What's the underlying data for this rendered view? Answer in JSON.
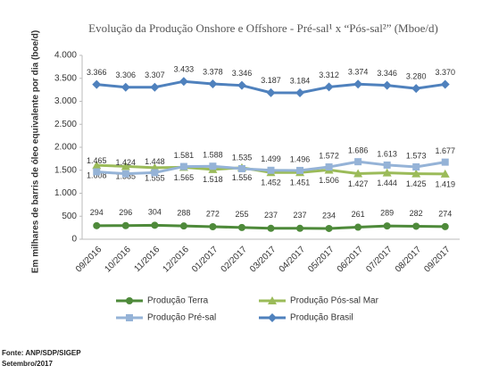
{
  "chart_data": {
    "type": "line",
    "title": "Evolução da Produção Onshore e Offshore - Pré-sal¹ x “Pós-sal²” (Mboe/d)",
    "ylabel": "Em milhares de barris de óleo equivalente por dia (boe/d)",
    "categories": [
      "09/2016",
      "10/2016",
      "11/2016",
      "12/2016",
      "01/2017",
      "02/2017",
      "03/2017",
      "04/2017",
      "05/2017",
      "06/2017",
      "07/2017",
      "08/2017",
      "09/2017"
    ],
    "series": [
      {
        "name": "Produção Terra",
        "color": "#4e8a3a",
        "marker": "circle",
        "values": [
          294,
          296,
          304,
          288,
          272,
          255,
          237,
          237,
          234,
          261,
          289,
          282,
          274
        ]
      },
      {
        "name": "Produção Pós-sal Mar",
        "color": "#9bbb59",
        "marker": "triangle",
        "values": [
          1608,
          1585,
          1555,
          1565,
          1518,
          1556,
          1452,
          1451,
          1506,
          1427,
          1444,
          1425,
          1419
        ],
        "value_labels": [
          "1.608",
          "1.585",
          "1.555",
          "1.565",
          "1.518",
          "1.556",
          "1.452",
          "1.451",
          "1.506",
          "1.427",
          "1.444",
          "1.425",
          "1.419"
        ]
      },
      {
        "name": "Produção Pré-sal",
        "color": "#95b3d7",
        "marker": "square",
        "values": [
          1465,
          1424,
          1448,
          1581,
          1588,
          1535,
          1499,
          1496,
          1572,
          1686,
          1613,
          1573,
          1677
        ],
        "value_labels": [
          "1.465",
          "1.424",
          "1.448",
          "1.581",
          "1.588",
          "1.535",
          "1.499",
          "1.496",
          "1.572",
          "1.686",
          "1.613",
          "1.573",
          "1.677"
        ]
      },
      {
        "name": "Produção Brasil",
        "color": "#4f81bd",
        "marker": "diamond",
        "values": [
          3366,
          3306,
          3307,
          3433,
          3378,
          3346,
          3187,
          3184,
          3312,
          3374,
          3346,
          3280,
          3370
        ],
        "value_labels": [
          "3.366",
          "3.306",
          "3.307",
          "3.433",
          "3.378",
          "3.346",
          "3.187",
          "3.184",
          "3.312",
          "3.374",
          "3.346",
          "3.280",
          "3.370"
        ]
      }
    ],
    "ylim": [
      0,
      4000
    ],
    "yticks": [
      0,
      500,
      {
        "value": 1000,
        "label": "1.000"
      },
      {
        "value": 1500,
        "label": "1.500"
      },
      {
        "value": 2000,
        "label": "2.000"
      },
      {
        "value": 2500,
        "label": "2.500"
      },
      {
        "value": 3000,
        "label": "3.000"
      },
      {
        "value": 3500,
        "label": "3.500"
      },
      {
        "value": 4000,
        "label": "4.000"
      }
    ],
    "legend": "bottom",
    "source": "Fonte: ANP/SDP/SIGEP",
    "date": "Setembro/2017"
  }
}
